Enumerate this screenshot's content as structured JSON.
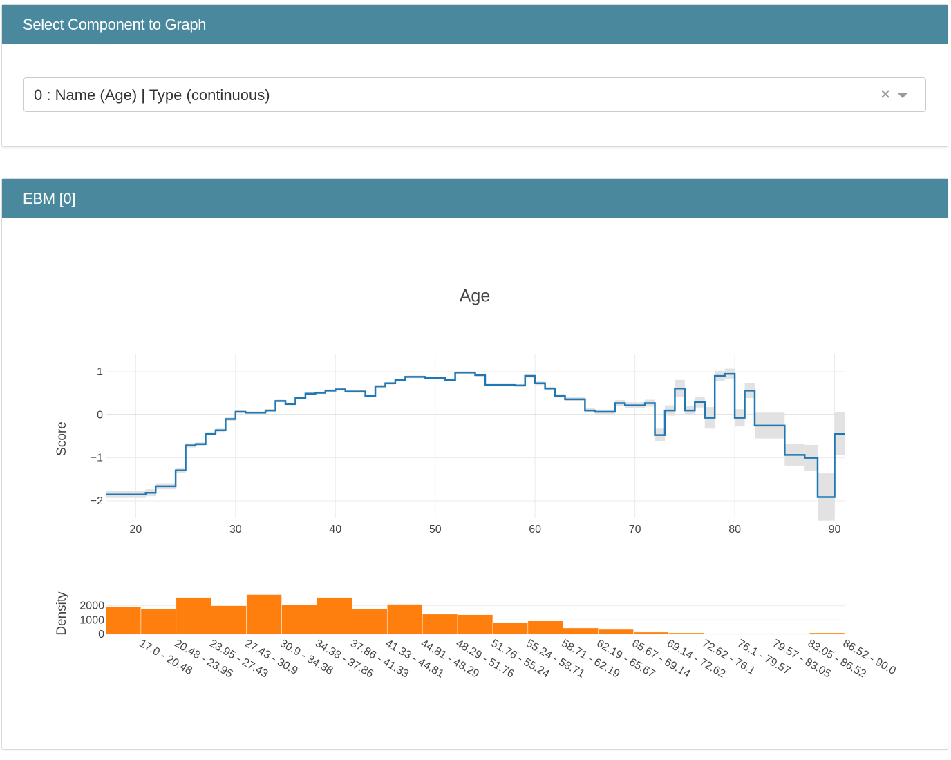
{
  "panels": [
    {
      "title": "Select Component to Graph",
      "dropdown": "0 : Name (Age) | Type (continuous)"
    },
    {
      "title": "EBM [0]"
    }
  ],
  "chart_data": [
    {
      "type": "step",
      "title": "Age",
      "y_label": "Score",
      "color": "#1f77b4",
      "band_color": "#e2e2e2",
      "zeroline": true,
      "grid": true,
      "x": [
        17,
        21,
        22,
        24,
        25,
        26,
        27,
        28,
        29,
        30,
        31,
        33,
        34,
        35,
        36,
        37,
        38,
        39,
        40,
        41,
        43,
        44,
        45,
        46,
        47,
        49,
        51,
        52,
        54,
        55,
        58,
        59,
        60,
        61,
        62,
        63,
        65,
        66,
        68,
        69,
        71,
        72,
        73,
        74,
        75,
        76,
        77,
        78,
        79,
        80,
        81,
        82,
        85,
        87,
        88.3,
        90
      ],
      "values": [
        -1.85,
        -1.81,
        -1.66,
        -1.29,
        -0.71,
        -0.68,
        -0.44,
        -0.36,
        -0.1,
        0.07,
        0.05,
        0.1,
        0.32,
        0.25,
        0.39,
        0.49,
        0.51,
        0.56,
        0.59,
        0.54,
        0.44,
        0.66,
        0.73,
        0.81,
        0.88,
        0.85,
        0.81,
        0.98,
        0.92,
        0.69,
        0.68,
        0.9,
        0.73,
        0.61,
        0.44,
        0.36,
        0.1,
        0.07,
        0.27,
        0.22,
        0.27,
        -0.47,
        0.1,
        0.61,
        0.1,
        0.29,
        -0.07,
        0.9,
        0.95,
        -0.07,
        0.56,
        -0.25,
        -0.93,
        -1.0,
        -1.91,
        -0.44
      ],
      "errors": [
        0.08,
        0.08,
        0.07,
        0.06,
        0.05,
        0.04,
        0.04,
        0.04,
        0.04,
        0.03,
        0.03,
        0.03,
        0.03,
        0.03,
        0.03,
        0.03,
        0.03,
        0.03,
        0.03,
        0.03,
        0.03,
        0.03,
        0.03,
        0.03,
        0.03,
        0.03,
        0.03,
        0.03,
        0.03,
        0.03,
        0.03,
        0.04,
        0.04,
        0.04,
        0.04,
        0.05,
        0.05,
        0.05,
        0.07,
        0.07,
        0.08,
        0.15,
        0.12,
        0.2,
        0.1,
        0.12,
        0.25,
        0.12,
        0.12,
        0.2,
        0.17,
        0.3,
        0.25,
        0.3,
        0.55,
        0.5
      ],
      "xlim": [
        17,
        91
      ],
      "xticks": [
        20,
        30,
        40,
        50,
        60,
        70,
        80,
        90
      ],
      "ylim": [
        -2.4,
        1.4
      ],
      "yticks": [
        {
          "value": -2,
          "label": "−2"
        },
        {
          "value": -1,
          "label": "−1"
        },
        0,
        1
      ]
    },
    {
      "type": "bar",
      "y_label": "Density",
      "color": "#ff7f0e",
      "grid": true,
      "categories": [
        "17.0 - 20.48",
        "20.48 - 23.95",
        "23.95 - 27.43",
        "27.43 - 30.9",
        "30.9 - 34.38",
        "34.38 - 37.86",
        "37.86 - 41.33",
        "41.33 - 44.81",
        "44.81 - 48.29",
        "48.29 - 51.76",
        "51.76 - 55.24",
        "55.24 - 58.71",
        "58.71 - 62.19",
        "62.19 - 65.67",
        "65.67 - 69.14",
        "69.14 - 72.62",
        "72.62 - 76.1",
        "76.1 - 79.57",
        "79.57 - 83.05",
        "83.05 - 86.52",
        "86.52 - 90.0"
      ],
      "values": [
        1900,
        1800,
        2580,
        2000,
        2780,
        2050,
        2580,
        1760,
        2100,
        1410,
        1370,
        830,
        930,
        440,
        340,
        150,
        100,
        50,
        50,
        20,
        100
      ],
      "ylim": [
        0,
        2900
      ],
      "yticks": [
        0,
        1000,
        2000
      ]
    }
  ]
}
